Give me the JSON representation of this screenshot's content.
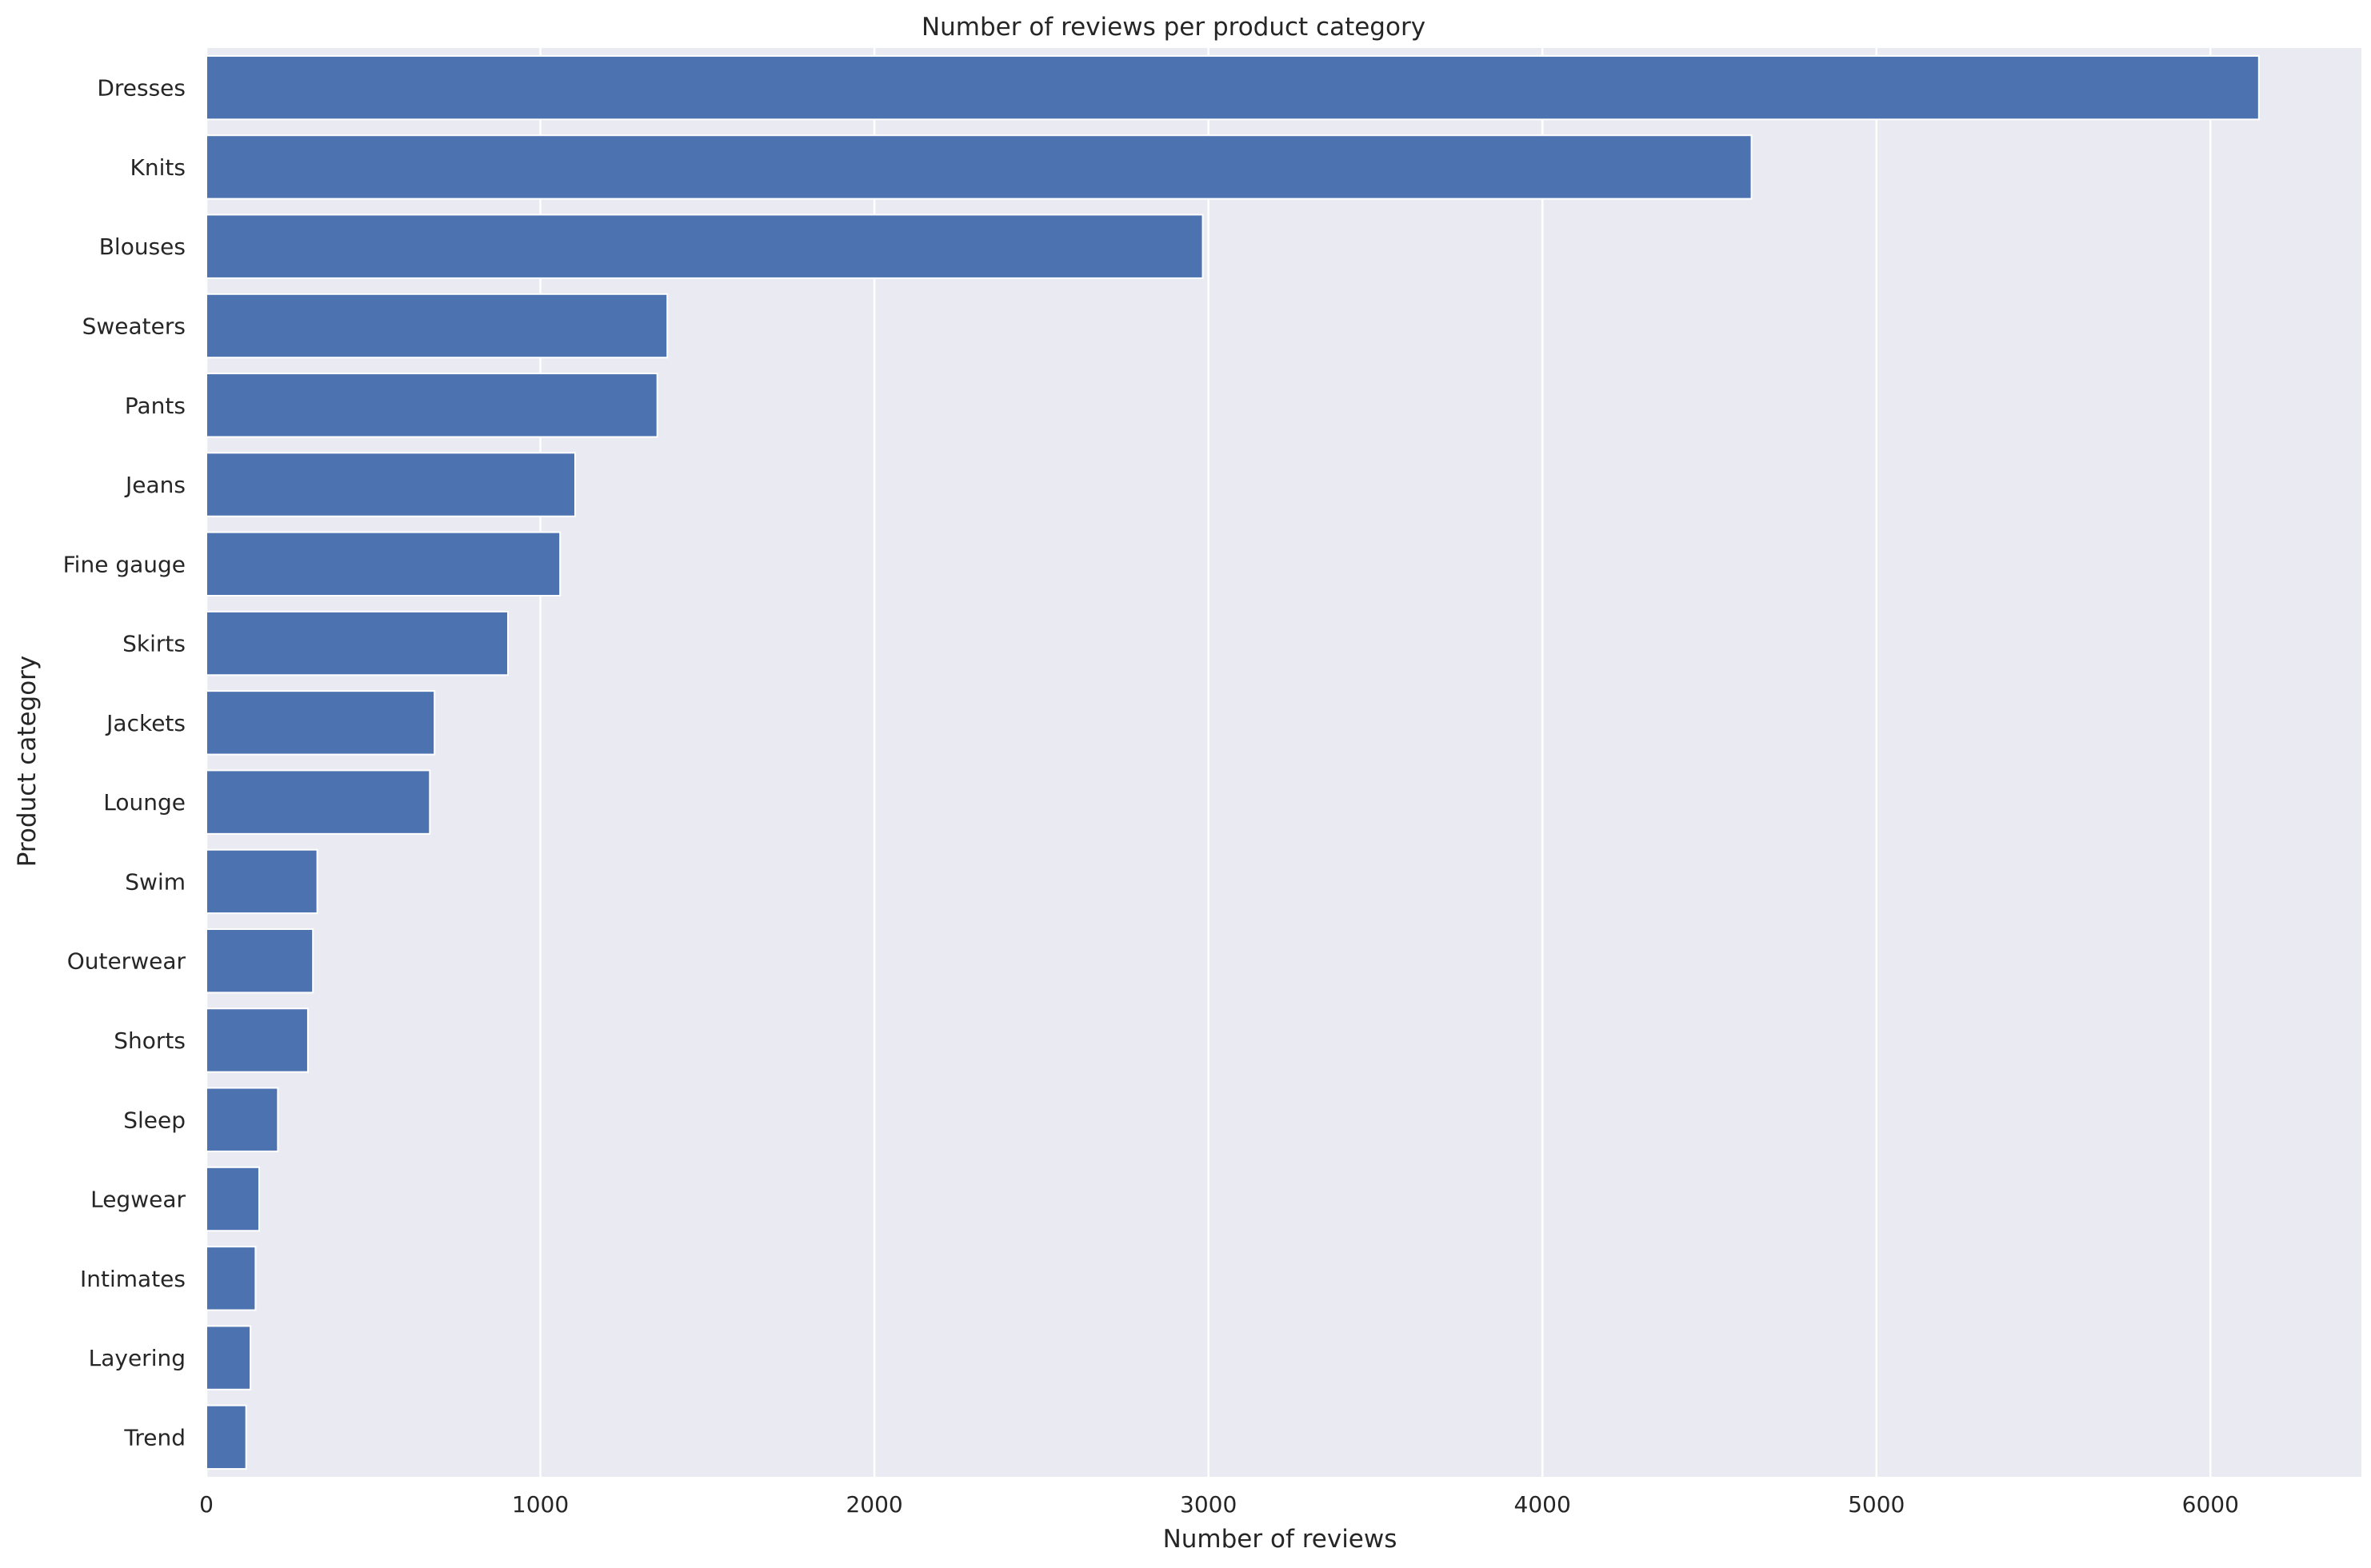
{
  "chart_data": {
    "type": "bar",
    "orientation": "horizontal",
    "title": "Number of reviews per product category",
    "xlabel": "Number of reviews",
    "ylabel": "Product category",
    "categories": [
      "Dresses",
      "Knits",
      "Blouses",
      "Sweaters",
      "Pants",
      "Jeans",
      "Fine gauge",
      "Skirts",
      "Jackets",
      "Lounge",
      "Swim",
      "Outerwear",
      "Shorts",
      "Sleep",
      "Legwear",
      "Intimates",
      "Layering",
      "Trend"
    ],
    "values": [
      6145,
      4626,
      2983,
      1380,
      1350,
      1104,
      1059,
      903,
      683,
      669,
      332,
      319,
      304,
      214,
      158,
      147,
      132,
      119
    ],
    "xlim": [
      0,
      6452
    ],
    "xticks": [
      0,
      1000,
      2000,
      3000,
      4000,
      5000,
      6000
    ],
    "xtick_labels": [
      "0",
      "1000",
      "2000",
      "3000",
      "4000",
      "5000",
      "6000"
    ],
    "grid": true,
    "bar_color": "#4c72b0",
    "background_color": "#eaeaf2",
    "grid_color": "#ffffff"
  }
}
